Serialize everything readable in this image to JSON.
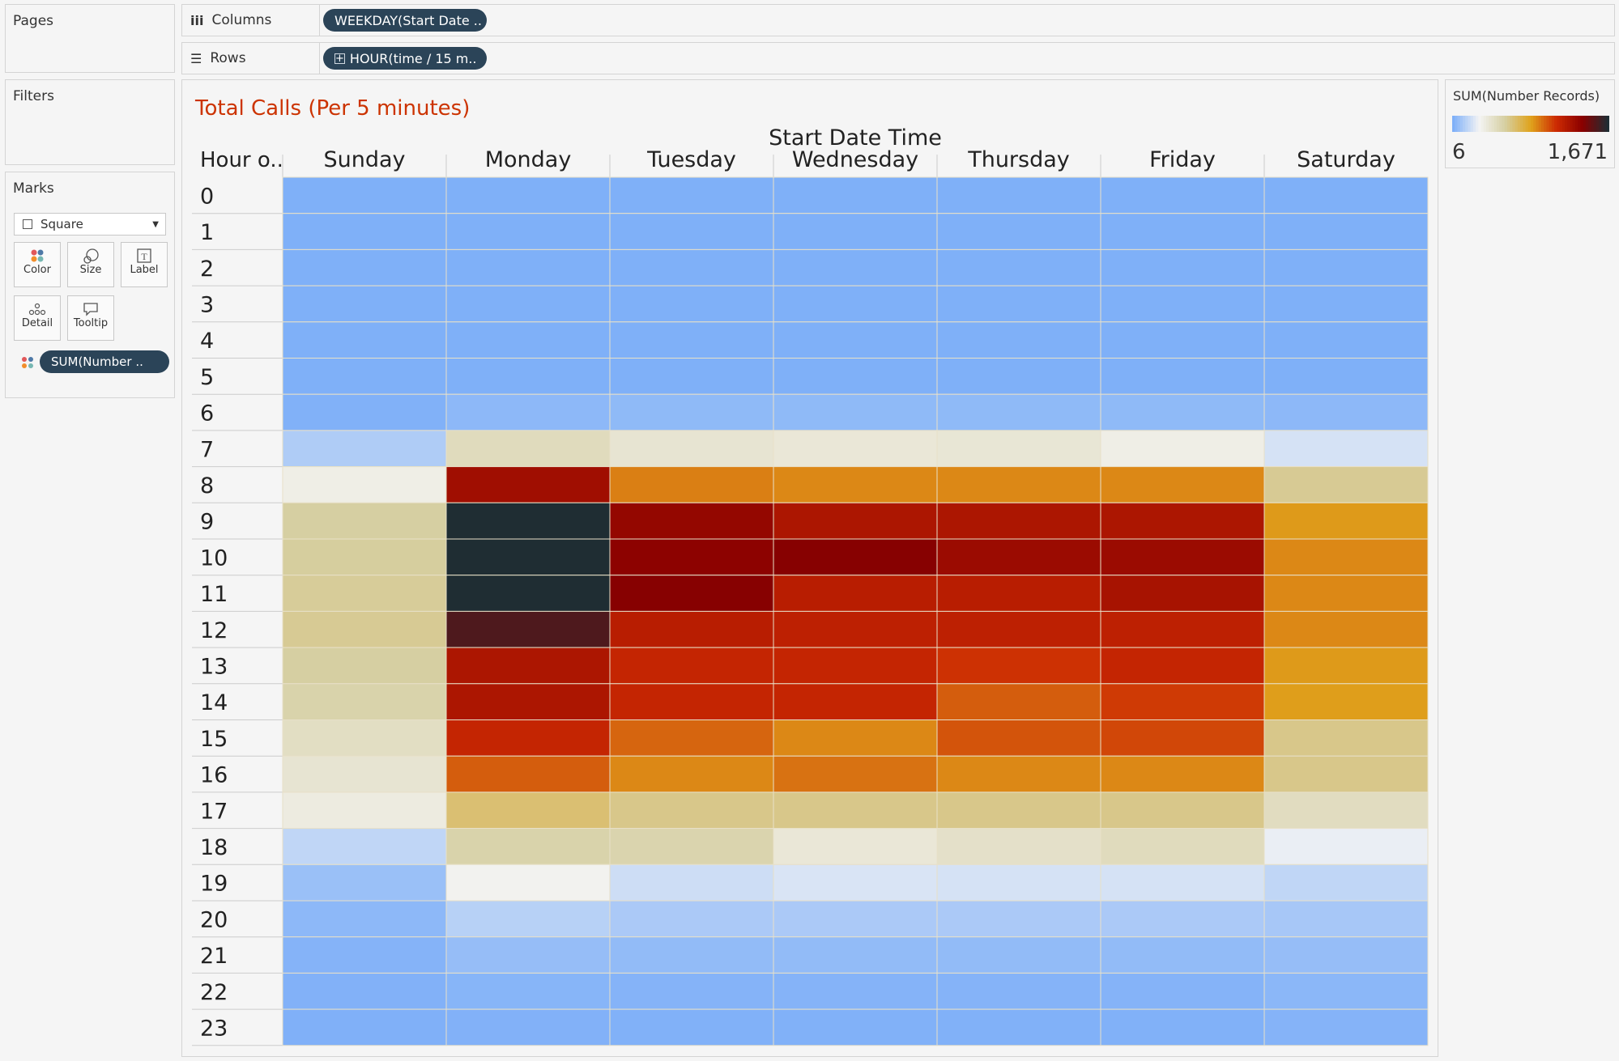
{
  "shelves": {
    "pages_label": "Pages",
    "filters_label": "Filters",
    "marks_label": "Marks",
    "columns_label": "Columns",
    "rows_label": "Rows",
    "columns_pill": "WEEKDAY(Start Date ..",
    "rows_pill": "HOUR(time / 15 m.."
  },
  "marks": {
    "mark_type": "Square",
    "buttons": [
      "Color",
      "Size",
      "Label",
      "Detail",
      "Tooltip"
    ],
    "color_pill": "SUM(Number .."
  },
  "legend": {
    "title": "SUM(Number Records)",
    "min_label": "6",
    "max_label": "1,671",
    "min": 6,
    "max": 1671
  },
  "chart_data": {
    "type": "heatmap",
    "title": "Total Calls (Per 5 minutes)",
    "column_header": "Start Date Time",
    "row_header": "Hour o..",
    "columns": [
      "Sunday",
      "Monday",
      "Tuesday",
      "Wednesday",
      "Thursday",
      "Friday",
      "Saturday"
    ],
    "rows": [
      "0",
      "1",
      "2",
      "3",
      "4",
      "5",
      "6",
      "7",
      "8",
      "9",
      "10",
      "11",
      "12",
      "13",
      "14",
      "15",
      "16",
      "17",
      "18",
      "19",
      "20",
      "21",
      "22",
      "23"
    ],
    "values": [
      [
        6,
        6,
        6,
        6,
        6,
        6,
        6
      ],
      [
        6,
        6,
        6,
        6,
        6,
        6,
        6
      ],
      [
        6,
        6,
        6,
        6,
        6,
        6,
        6
      ],
      [
        6,
        6,
        6,
        6,
        6,
        6,
        6
      ],
      [
        6,
        6,
        6,
        6,
        6,
        6,
        6
      ],
      [
        6,
        6,
        6,
        6,
        6,
        6,
        6
      ],
      [
        10,
        40,
        45,
        45,
        45,
        45,
        40
      ],
      [
        120,
        470,
        400,
        380,
        390,
        330,
        210
      ],
      [
        330,
        1300,
        920,
        900,
        900,
        900,
        590
      ],
      [
        560,
        1671,
        1350,
        1250,
        1250,
        1250,
        860
      ],
      [
        570,
        1671,
        1380,
        1400,
        1320,
        1320,
        900
      ],
      [
        580,
        1671,
        1400,
        1200,
        1200,
        1270,
        900
      ],
      [
        590,
        1550,
        1200,
        1180,
        1180,
        1180,
        900
      ],
      [
        560,
        1250,
        1150,
        1150,
        1100,
        1150,
        860
      ],
      [
        530,
        1250,
        1150,
        1150,
        1000,
        1080,
        850
      ],
      [
        450,
        1150,
        980,
        900,
        1020,
        1050,
        610
      ],
      [
        400,
        1000,
        900,
        950,
        900,
        900,
        610
      ],
      [
        350,
        660,
        610,
        610,
        610,
        610,
        460
      ],
      [
        160,
        530,
        520,
        380,
        430,
        470,
        260
      ],
      [
        70,
        300,
        190,
        220,
        210,
        210,
        160
      ],
      [
        40,
        140,
        110,
        110,
        110,
        110,
        100
      ],
      [
        20,
        60,
        50,
        50,
        50,
        50,
        60
      ],
      [
        12,
        25,
        20,
        20,
        20,
        20,
        35
      ],
      [
        8,
        12,
        10,
        10,
        10,
        10,
        20
      ]
    ],
    "color_scale": {
      "min": 6,
      "max": 1671,
      "stops": [
        "#7fb0f8",
        "#f4f4f4",
        "#d6cfa2",
        "#e0a31c",
        "#cc2a02",
        "#8a0000",
        "#1f2d33"
      ]
    }
  }
}
